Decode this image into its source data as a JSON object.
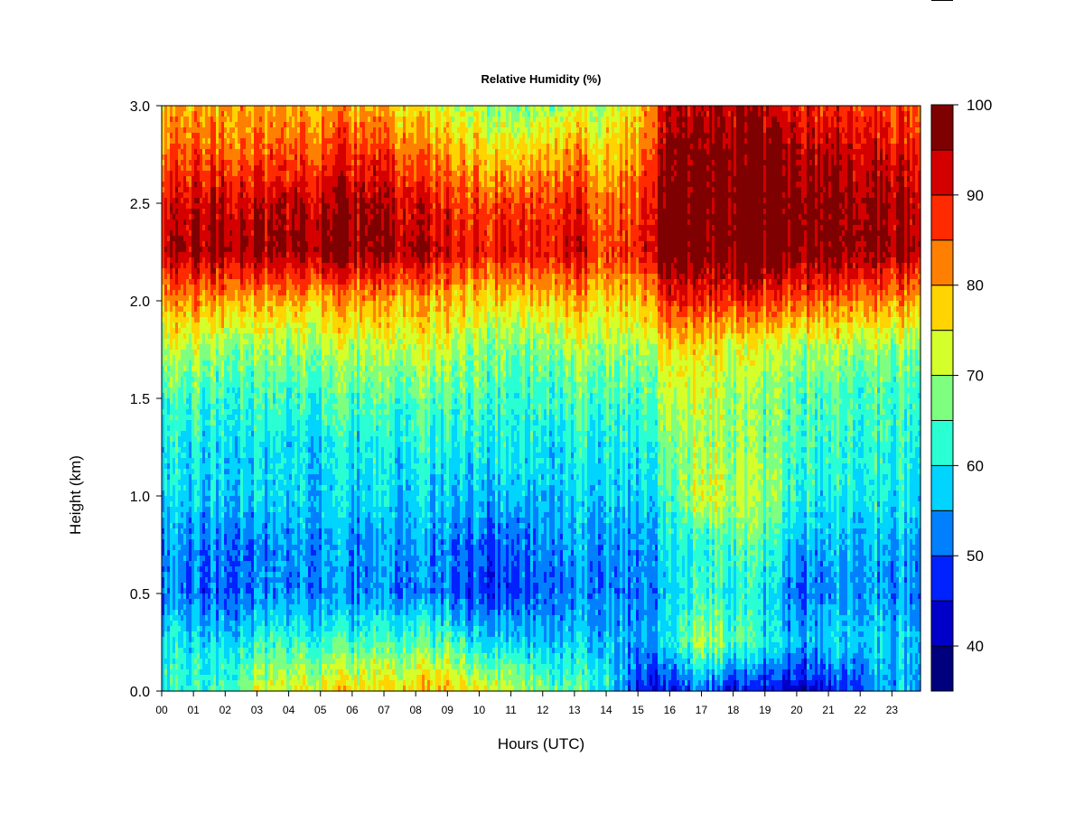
{
  "chart_data": {
    "type": "heatmap",
    "title": "Relative Humidity (%)",
    "xlabel": "Hours (UTC)",
    "ylabel": "Height (km)",
    "xlim": [
      0,
      23.9
    ],
    "ylim": [
      0,
      3.0
    ],
    "x_ticks": [
      "00",
      "01",
      "02",
      "03",
      "04",
      "05",
      "06",
      "07",
      "08",
      "09",
      "10",
      "11",
      "12",
      "13",
      "14",
      "15",
      "16",
      "17",
      "18",
      "19",
      "20",
      "21",
      "22",
      "23"
    ],
    "y_ticks": [
      "0.0",
      "0.5",
      "1.0",
      "1.5",
      "2.0",
      "2.5",
      "3.0"
    ],
    "colorbar": {
      "levels": [
        35,
        40,
        45,
        50,
        55,
        60,
        65,
        70,
        75,
        80,
        85,
        90,
        95,
        100
      ],
      "tick_labels": [
        "40",
        "50",
        "60",
        "70",
        "80",
        "90",
        "100"
      ],
      "colors": [
        "#00007f",
        "#0000c8",
        "#0022ff",
        "#0080ff",
        "#00d4ff",
        "#2affd4",
        "#7fff7f",
        "#d4ff2a",
        "#ffd400",
        "#ff8000",
        "#ff2a00",
        "#d40000",
        "#7f0000"
      ]
    },
    "heights_km": [
      0.0,
      0.25,
      0.5,
      0.75,
      1.0,
      1.25,
      1.5,
      1.75,
      2.0,
      2.25,
      2.5,
      2.75,
      3.0
    ],
    "hours": [
      0,
      1,
      2,
      3,
      4,
      5,
      6,
      7,
      8,
      9,
      10,
      11,
      12,
      13,
      14,
      15,
      16,
      17,
      18,
      19,
      20,
      21,
      22,
      23
    ],
    "values_by_hour": [
      [
        62,
        60,
        53,
        54,
        58,
        60,
        63,
        70,
        80,
        93,
        90,
        84,
        78
      ],
      [
        63,
        60,
        52,
        53,
        58,
        60,
        64,
        70,
        82,
        96,
        93,
        86,
        80
      ],
      [
        64,
        58,
        50,
        52,
        57,
        59,
        63,
        68,
        80,
        96,
        93,
        85,
        80
      ],
      [
        72,
        62,
        52,
        52,
        58,
        59,
        63,
        68,
        80,
        96,
        93,
        85,
        80
      ],
      [
        74,
        63,
        53,
        54,
        58,
        59,
        63,
        68,
        80,
        96,
        94,
        86,
        80
      ],
      [
        75,
        63,
        54,
        55,
        58,
        60,
        64,
        70,
        80,
        97,
        95,
        87,
        80
      ],
      [
        76,
        63,
        52,
        53,
        58,
        60,
        64,
        70,
        80,
        97,
        95,
        88,
        80
      ],
      [
        77,
        64,
        53,
        54,
        58,
        60,
        64,
        70,
        80,
        96,
        94,
        87,
        78
      ],
      [
        78,
        65,
        53,
        55,
        58,
        61,
        65,
        72,
        80,
        95,
        92,
        84,
        76
      ],
      [
        80,
        66,
        53,
        54,
        58,
        62,
        66,
        73,
        80,
        93,
        90,
        82,
        74
      ],
      [
        74,
        58,
        48,
        50,
        56,
        60,
        64,
        68,
        76,
        90,
        86,
        78,
        70
      ],
      [
        72,
        58,
        48,
        50,
        56,
        60,
        62,
        66,
        76,
        90,
        86,
        76,
        66
      ],
      [
        68,
        57,
        52,
        54,
        57,
        60,
        64,
        68,
        78,
        91,
        88,
        80,
        70
      ],
      [
        66,
        58,
        53,
        55,
        58,
        60,
        65,
        70,
        80,
        93,
        90,
        82,
        72
      ],
      [
        60,
        56,
        52,
        53,
        57,
        60,
        63,
        68,
        76,
        86,
        82,
        76,
        70
      ],
      [
        48,
        55,
        53,
        54,
        58,
        61,
        64,
        70,
        78,
        90,
        87,
        82,
        78
      ],
      [
        44,
        58,
        56,
        58,
        62,
        66,
        70,
        74,
        88,
        99,
        99,
        96,
        92
      ],
      [
        52,
        72,
        64,
        62,
        74,
        70,
        72,
        76,
        88,
        99,
        99,
        98,
        94
      ],
      [
        44,
        64,
        60,
        64,
        70,
        68,
        68,
        72,
        88,
        99,
        99,
        98,
        94
      ],
      [
        43,
        60,
        58,
        62,
        68,
        66,
        66,
        70,
        86,
        99,
        99,
        97,
        92
      ],
      [
        43,
        56,
        52,
        56,
        62,
        64,
        66,
        70,
        86,
        98,
        98,
        96,
        90
      ],
      [
        46,
        58,
        53,
        56,
        60,
        62,
        64,
        70,
        84,
        98,
        97,
        94,
        88
      ],
      [
        50,
        58,
        54,
        56,
        60,
        62,
        64,
        68,
        84,
        97,
        96,
        93,
        88
      ],
      [
        56,
        58,
        54,
        56,
        60,
        62,
        64,
        68,
        82,
        96,
        95,
        92,
        86
      ]
    ]
  }
}
